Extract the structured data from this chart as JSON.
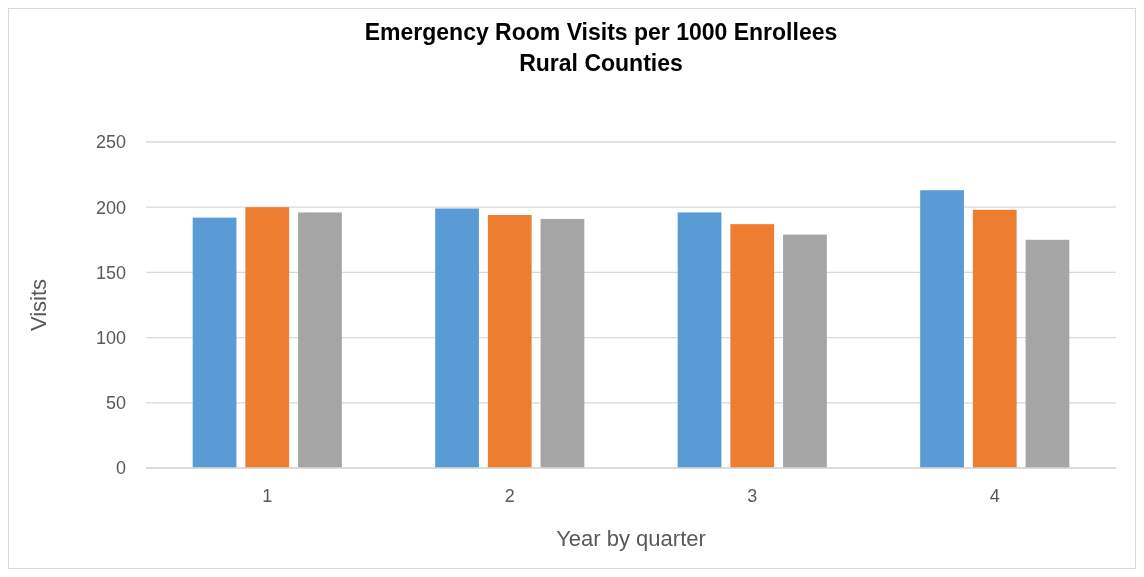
{
  "chart_data": {
    "type": "bar",
    "title": "Emergency Room Visits per 1000 Enrollees\nRural Counties",
    "xlabel": "Year by quarter",
    "ylabel": "Visits",
    "categories": [
      "1",
      "2",
      "3",
      "4"
    ],
    "series": [
      {
        "color": "#5b9bd5",
        "values": [
          192,
          199,
          196,
          213
        ]
      },
      {
        "color": "#ed7d31",
        "values": [
          200,
          194,
          187,
          198
        ]
      },
      {
        "color": "#a5a5a5",
        "values": [
          196,
          191,
          179,
          175
        ]
      }
    ],
    "ylim": [
      0,
      250
    ],
    "yticks": [
      0,
      50,
      100,
      150,
      200,
      250
    ],
    "grid": "y"
  }
}
